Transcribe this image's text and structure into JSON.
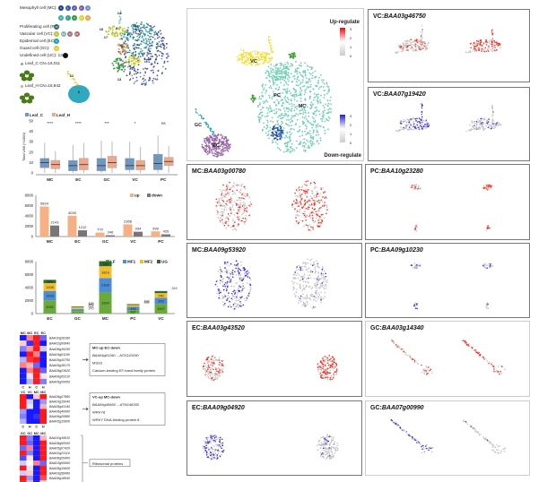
{
  "overview": {
    "legend": [
      {
        "label": "Mesophyll cell (MC):",
        "clusters": [
          "0",
          "1",
          "2",
          "3",
          "4"
        ],
        "colors": [
          "#1f3c88",
          "#3a5ca8",
          "#5a5fa8",
          "#7b5ea7",
          "#6f8fd0"
        ]
      },
      {
        "label": "",
        "clusters": [
          "5",
          "7",
          "8",
          "10",
          "11"
        ],
        "colors": [
          "#3ab0a8",
          "#2ea58a",
          "#2d9a3a",
          "#d4d62a",
          "#f0a040"
        ]
      },
      {
        "label": "Proliferating cell (PC):",
        "clusters": [
          "16"
        ],
        "colors": [
          "#2a6a6a"
        ]
      },
      {
        "label": "Vascular cell (VC):",
        "clusters": [
          "9",
          "14",
          "17",
          "18"
        ],
        "colors": [
          "#b8c83a",
          "#7fb8b0",
          "#a07080",
          "#b07060"
        ]
      },
      {
        "label": "Epidermal cell (EC):",
        "clusters": [
          "6"
        ],
        "colors": [
          "#1aa0b8"
        ]
      },
      {
        "label": "Guard cell (GC):",
        "clusters": [
          "12"
        ],
        "colors": [
          "#e8c820"
        ]
      },
      {
        "label": "Undefined cell (UC): 13",
        "clusters": [
          ""
        ],
        "colors": [
          "#111111"
        ]
      }
    ],
    "samples": [
      {
        "label": "Leaf_C  CN=16,011",
        "color": "#7aa6d0"
      },
      {
        "label": "Leaf_H  CN=16,942",
        "color": "#f0a080"
      }
    ]
  },
  "boxplot": {
    "type": "box",
    "legend": [
      "Leaf_C",
      "Leaf_H"
    ],
    "colors": [
      "#6f97c0",
      "#f0a88a"
    ],
    "ylabel": "Total UMI (×1000)",
    "ylim": [
      0,
      50
    ],
    "yticks": [
      0,
      10,
      20,
      30,
      40,
      50
    ],
    "categories": [
      "MC",
      "EC",
      "GC",
      "VC",
      "PC"
    ],
    "significance": [
      "****",
      "****",
      "***",
      "*",
      "ns"
    ],
    "series": [
      {
        "name": "Leaf_C",
        "boxes": [
          [
            0,
            5,
            10,
            14,
            29
          ],
          [
            0,
            2,
            7,
            12,
            27
          ],
          [
            0,
            2,
            7,
            14,
            31
          ],
          [
            0,
            3,
            7,
            14,
            30
          ],
          [
            0,
            3,
            9,
            18,
            36
          ]
        ]
      },
      {
        "name": "Leaf_H",
        "boxes": [
          [
            0,
            4,
            8,
            12,
            21
          ],
          [
            0,
            3,
            8,
            14,
            29
          ],
          [
            0,
            5,
            10,
            16,
            30
          ],
          [
            0,
            3,
            7,
            12,
            25
          ],
          [
            0,
            7,
            11,
            15,
            26
          ]
        ]
      }
    ]
  },
  "chart_data": [
    {
      "type": "bar",
      "categories": [
        "MC",
        "EC",
        "GC",
        "VC",
        "PC"
      ],
      "ylim": [
        0,
        8000
      ],
      "yticks": [
        0,
        2000,
        4000,
        6000,
        8000
      ],
      "legend_placement": "top-right",
      "series": [
        {
          "name": "up",
          "color": "#f5b084",
          "values": [
            5824,
            4030,
            770,
            2368,
            999
          ]
        },
        {
          "name": "down",
          "color": "#777777",
          "values": [
            2143,
            1212,
            246,
            934,
            426
          ]
        }
      ]
    },
    {
      "type": "bar",
      "stacked": true,
      "categories": [
        "EC",
        "GC",
        "MC",
        "PC",
        "VC"
      ],
      "ylim": [
        0,
        8000
      ],
      "yticks": [
        0,
        2000,
        4000,
        6000,
        8000
      ],
      "legend_placement": "top-right",
      "series": [
        {
          "name": "LF",
          "color": "#6aaa3a",
          "values": [
            2052,
            370,
            3304,
            537,
            1507
          ]
        },
        {
          "name": "MF1",
          "color": "#4a8ed8",
          "values": [
            1428,
            314,
            2164,
            493,
            903
          ]
        },
        {
          "name": "MF2",
          "color": "#f0c030",
          "values": [
            1208,
            269,
            1819,
            288,
            740
          ]
        },
        {
          "name": "UG",
          "color": "#2e6a2e",
          "values": [
            504,
            123,
            780,
            133,
            319
          ]
        }
      ]
    }
  ],
  "heatmaps": [
    {
      "cols": [
        "MC",
        "MC",
        "EC",
        "EC"
      ],
      "samples": [
        "C",
        "H",
        "C",
        "H"
      ],
      "genes": [
        "BAA10g28180",
        "BAA02g00840",
        "BAA08g16250",
        "BAA04g01190",
        "BAA05g10750",
        "BAA05g18170",
        "BAA08g23620",
        "BAA06g05310",
        "BAA05g05450"
      ],
      "values": [
        [
          -0.9,
          0.5,
          0.9,
          -0.6
        ],
        [
          0.2,
          -0.8,
          0.9,
          -0.9
        ],
        [
          -0.5,
          0.4,
          0.9,
          -0.2
        ],
        [
          -0.9,
          0.9,
          0.5,
          -0.9
        ],
        [
          -0.3,
          0.8,
          0.9,
          -0.9
        ],
        [
          0.5,
          0.3,
          -0.6,
          -0.9
        ],
        [
          -0.9,
          0.5,
          0.9,
          -0.6
        ],
        [
          -0.9,
          -0.1,
          0.9,
          0.1
        ],
        [
          -0.9,
          -0.3,
          0.9,
          -0.5
        ]
      ],
      "box": [
        "MC-up  EC-down",
        "BAA04g01190 -- AT2G43290",
        "MSS3",
        "Calcium-binding EF-hand family protein"
      ]
    },
    {
      "cols": [
        "VC",
        "VC",
        "MC",
        "MC"
      ],
      "samples": [
        "C",
        "H",
        "C",
        "H"
      ],
      "genes": [
        "BAA06g27880",
        "BAA03g15040",
        "BAA08g43140",
        "BAA06g40660",
        "BAA06g20880",
        "BAA05g15600"
      ],
      "values": [
        [
          0.9,
          -0.9,
          0.2,
          0.9
        ],
        [
          0.9,
          -0.2,
          -0.9,
          -0.4
        ],
        [
          0.9,
          -0.1,
          -0.9,
          0.3
        ],
        [
          -0.4,
          -0.9,
          -0.9,
          0.9
        ],
        [
          -0.5,
          -0.9,
          -0.8,
          0.9
        ],
        [
          -0.3,
          -0.9,
          -0.9,
          0.9
        ]
      ],
      "box": [
        "VC-up  MC-down",
        "BAA06g40660 -- AT5G46350",
        "WRKY8",
        "WRKY DNA-binding protein 8"
      ]
    },
    {
      "cols": [
        "GC",
        "GC",
        "MC",
        "MC"
      ],
      "samples": [
        "C",
        "H",
        "C",
        "H"
      ],
      "genes": [
        "BAA10g16810",
        "BAA08g50000",
        "BAA05g07420",
        "BAA02g23110",
        "BAA08g05400",
        "BAA03g00660",
        "BAA08g15600",
        "BAA03g58480",
        "BAA08g18840",
        "BAA01g10830",
        "BAA03g40240"
      ],
      "values": [
        [
          0.9,
          -0.5,
          -0.9,
          0.3
        ],
        [
          0.9,
          -0.6,
          -0.9,
          0.9
        ],
        [
          -0.6,
          0.5,
          -0.9,
          0.9
        ],
        [
          0.9,
          -0.5,
          -0.9,
          0.9
        ],
        [
          -0.7,
          0.1,
          -0.9,
          0.9
        ],
        [
          -0.2,
          0.0,
          0.5,
          -0.6
        ],
        [
          0.9,
          -0.1,
          -0.9,
          0.9
        ],
        [
          -0.2,
          0.2,
          -0.9,
          0.9
        ],
        [
          0.9,
          -0.4,
          -0.9,
          0.7
        ],
        [
          0.9,
          0.3,
          -0.9,
          0.1
        ],
        [
          0.9,
          -0.3,
          -0.9,
          -0.2
        ]
      ],
      "box": [
        "Ribosomal proteins"
      ]
    }
  ],
  "umap": {
    "labels": [
      "VC",
      "PC",
      "MC",
      "GC",
      "EC"
    ],
    "up_title": "Up-regulate",
    "down_title": "Down-regulate",
    "scale_ticks": [
      "3",
      "2",
      "1",
      "0"
    ],
    "up_color": "#ff0000",
    "down_color": "#2020e0"
  },
  "features": [
    {
      "cell": "VC",
      "gene": "BAA03g46750",
      "dir": "up"
    },
    {
      "cell": "VC",
      "gene": "BAA07g19420",
      "dir": "down"
    },
    {
      "cell": "MC",
      "gene": "BAA03g00780",
      "dir": "up"
    },
    {
      "cell": "PC",
      "gene": "BAA10g23280",
      "dir": "up"
    },
    {
      "cell": "MC",
      "gene": "BAA09g53920",
      "dir": "down"
    },
    {
      "cell": "PC",
      "gene": "BAA09g10230",
      "dir": "down"
    },
    {
      "cell": "EC",
      "gene": "BAA03g43520",
      "dir": "up"
    },
    {
      "cell": "GC",
      "gene": "BAA03g14340",
      "dir": "up"
    },
    {
      "cell": "EC",
      "gene": "BAA09g04920",
      "dir": "down"
    },
    {
      "cell": "GC",
      "gene": "BAA07g00990",
      "dir": "down"
    }
  ]
}
